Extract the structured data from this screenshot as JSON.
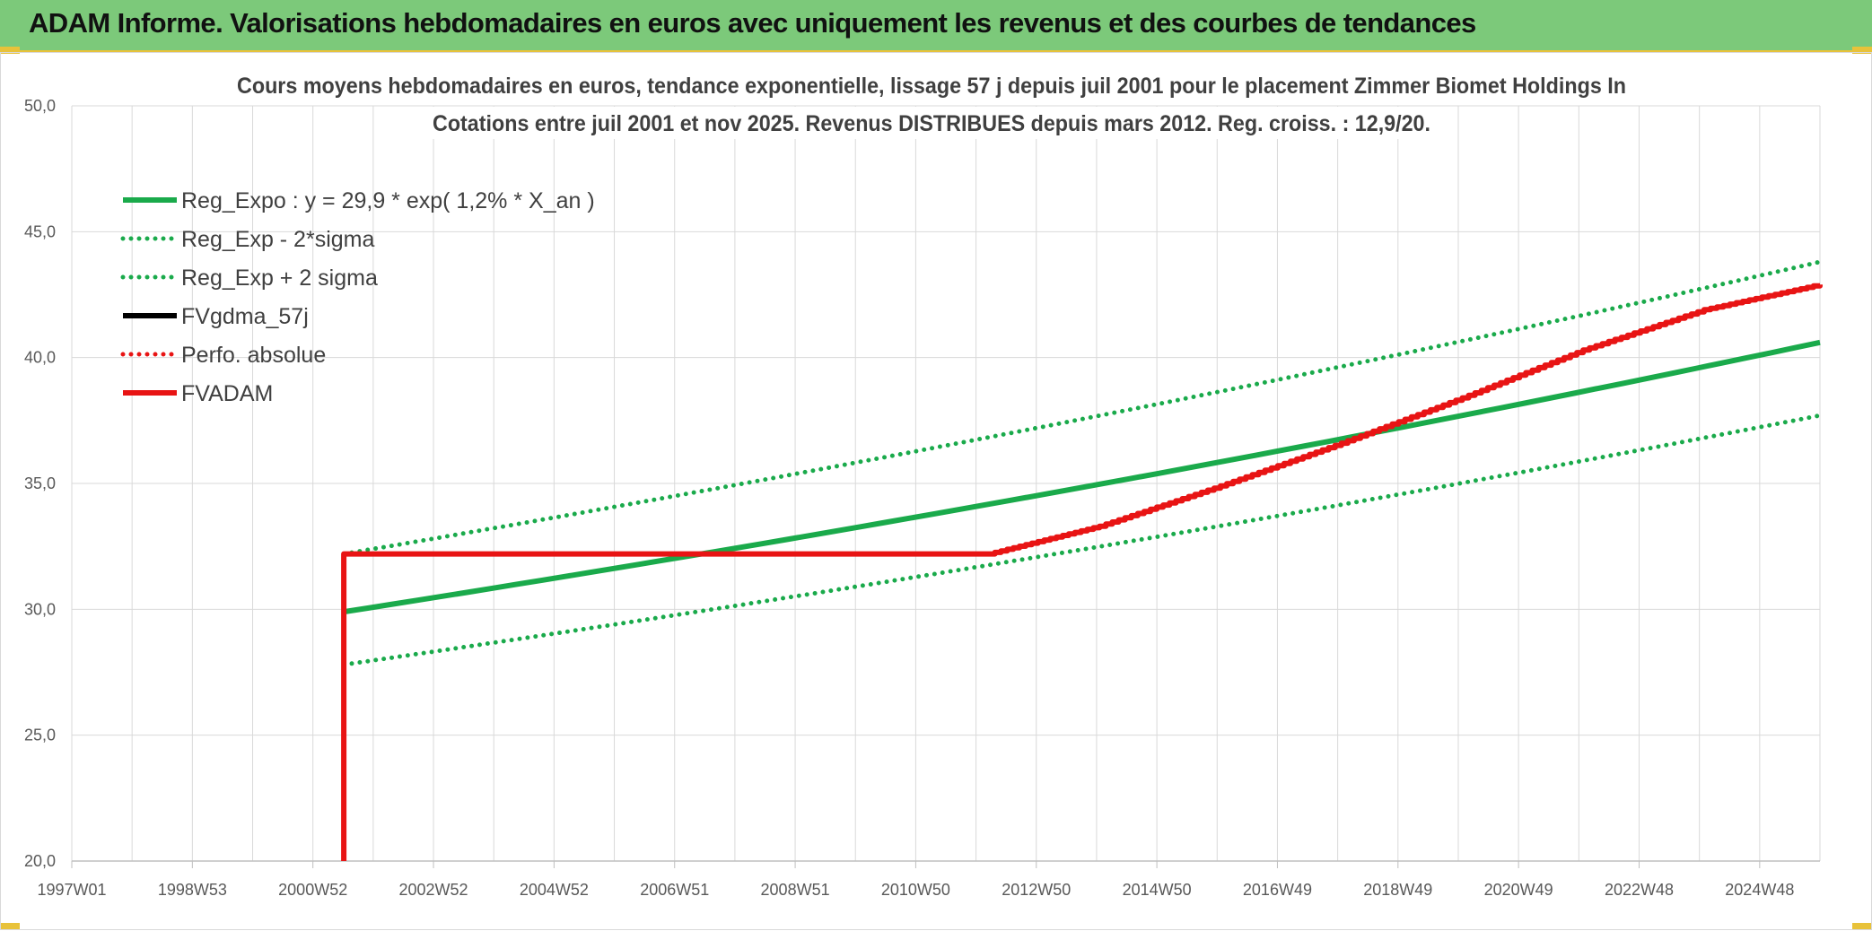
{
  "header": {
    "title": "ADAM Informe. Valorisations hebdomadaires en euros avec uniquement les revenus et des courbes de tendances"
  },
  "colors": {
    "header_bg": "#7cc97a",
    "accent_yellow": "#e8c23a",
    "trend_green": "#1aaa4b",
    "fvadam_red": "#e81414",
    "fvgdma_black": "#000000"
  },
  "chart_data": {
    "type": "line",
    "title_lines": [
      "Cours moyens hebdomadaires en euros, tendance exponentielle, lissage 57 j depuis juil 2001 pour le placement Zimmer Biomet Holdings In",
      "Cotations entre juil 2001 et nov 2025. Revenus DISTRIBUES depuis mars 2012. Reg. croiss. : 12,9/20."
    ],
    "x_range": [
      "1997-01",
      "2025-12"
    ],
    "ylim": [
      20,
      50
    ],
    "y_ticks": [
      "20,0",
      "25,0",
      "30,0",
      "35,0",
      "40,0",
      "45,0",
      "50,0"
    ],
    "x_ticks": [
      "1997W01",
      "1998W53",
      "2000W52",
      "2002W52",
      "2004W52",
      "2006W51",
      "2008W51",
      "2010W50",
      "2012W50",
      "2014W50",
      "2016W49",
      "2018W49",
      "2020W49",
      "2022W48",
      "2024W48"
    ],
    "grid": true,
    "legend_position": "top-left",
    "series": [
      {
        "name": "Reg_Expo : y = 29,9 * exp( 1,2% *  X_an )",
        "color": "#1aaa4b",
        "style": "solid",
        "x": [
          "2001-07",
          "2025-12"
        ],
        "y": [
          29.9,
          40.6
        ]
      },
      {
        "name": "Reg_Exp - 2*sigma",
        "color": "#1aaa4b",
        "style": "dotted",
        "x": [
          "2001-07",
          "2025-12"
        ],
        "y": [
          27.8,
          37.7
        ]
      },
      {
        "name": "Reg_Exp + 2 sigma",
        "color": "#1aaa4b",
        "style": "dotted",
        "x": [
          "2001-07",
          "2025-12"
        ],
        "y": [
          32.2,
          43.8
        ]
      },
      {
        "name": "FVgdma_57j",
        "color": "#000000",
        "style": "solid",
        "x": [],
        "y": []
      },
      {
        "name": "Perfo. absolue",
        "color": "#e81414",
        "style": "dotted",
        "x": [],
        "y": []
      },
      {
        "name": "FVADAM",
        "color": "#e81414",
        "style": "solid",
        "x": [
          "2001-07",
          "2001-07",
          "2012-03",
          "2014-01",
          "2016-01",
          "2018-01",
          "2020-01",
          "2022-01",
          "2024-01",
          "2025-12"
        ],
        "y": [
          20.0,
          32.2,
          32.2,
          33.3,
          34.9,
          36.6,
          38.4,
          40.3,
          41.9,
          42.9
        ]
      }
    ]
  }
}
